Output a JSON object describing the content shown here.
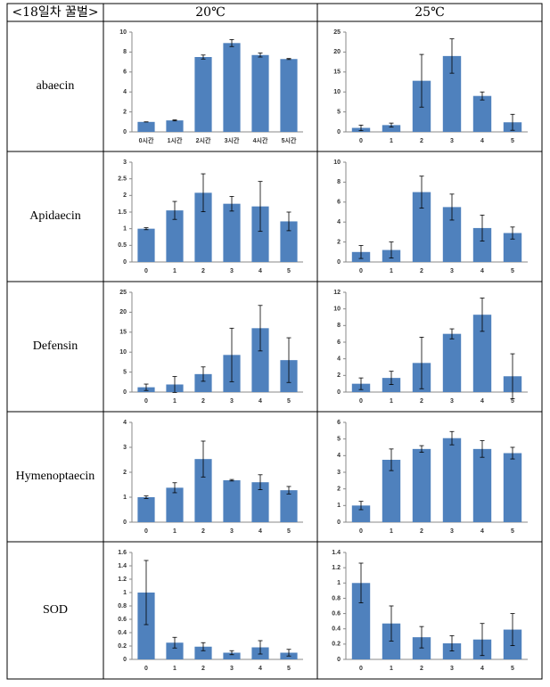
{
  "table": {
    "header": [
      "<18일차 꿀벌>",
      "20℃",
      "25℃"
    ],
    "rows": [
      "abaecin",
      "Apidaecin",
      "Defensin",
      "Hymenoptaecin",
      "SOD"
    ]
  },
  "chart_data": [
    {
      "type": "bar",
      "color": "#4f81bd",
      "categories": [
        "0시간",
        "1시간",
        "2시간",
        "3시간",
        "4시간",
        "5시간"
      ],
      "values": [
        1,
        1.15,
        7.5,
        8.9,
        7.7,
        7.3
      ],
      "errors": [
        0,
        0.05,
        0.2,
        0.35,
        0.2,
        0.05
      ],
      "ylim": [
        0,
        10
      ],
      "yticks": [
        0,
        2,
        4,
        6,
        8,
        10
      ]
    },
    {
      "type": "bar",
      "color": "#4f81bd",
      "categories": [
        "0",
        "1",
        "2",
        "3",
        "4",
        "5"
      ],
      "values": [
        1,
        1.7,
        12.8,
        19,
        9,
        2.4
      ],
      "errors": [
        0.7,
        0.5,
        6.6,
        4.3,
        1,
        2
      ],
      "ylim": [
        0,
        25
      ],
      "yticks": [
        0,
        5,
        10,
        15,
        20,
        25
      ]
    },
    {
      "type": "bar",
      "color": "#4f81bd",
      "categories": [
        "0",
        "1",
        "2",
        "3",
        "4",
        "5"
      ],
      "values": [
        1,
        1.55,
        2.08,
        1.75,
        1.67,
        1.22
      ],
      "errors": [
        0.03,
        0.27,
        0.57,
        0.22,
        0.75,
        0.28
      ],
      "ylim": [
        0,
        3
      ],
      "yticks": [
        0,
        0.5,
        1,
        1.5,
        2,
        2.5,
        3
      ]
    },
    {
      "type": "bar",
      "color": "#4f81bd",
      "categories": [
        "0",
        "1",
        "2",
        "3",
        "4",
        "5"
      ],
      "values": [
        1,
        1.2,
        7,
        5.5,
        3.4,
        2.9
      ],
      "errors": [
        0.65,
        0.8,
        1.6,
        1.3,
        1.3,
        0.6
      ],
      "ylim": [
        0,
        10
      ],
      "yticks": [
        0,
        2,
        4,
        6,
        8,
        10
      ]
    },
    {
      "type": "bar",
      "color": "#4f81bd",
      "categories": [
        "0",
        "1",
        "2",
        "3",
        "4",
        "5"
      ],
      "values": [
        1.2,
        1.9,
        4.5,
        9.3,
        16,
        8
      ],
      "errors": [
        0.8,
        2,
        1.8,
        6.7,
        5.7,
        5.6
      ],
      "ylim": [
        0,
        25
      ],
      "yticks": [
        0,
        5,
        10,
        15,
        20,
        25
      ]
    },
    {
      "type": "bar",
      "color": "#4f81bd",
      "categories": [
        "0",
        "1",
        "2",
        "3",
        "4",
        "5"
      ],
      "values": [
        1,
        1.7,
        3.5,
        7,
        9.3,
        1.9
      ],
      "errors": [
        0.7,
        0.8,
        3.1,
        0.6,
        2,
        2.7
      ],
      "ylim": [
        0,
        12
      ],
      "yticks": [
        0,
        2,
        4,
        6,
        8,
        10,
        12
      ]
    },
    {
      "type": "bar",
      "color": "#4f81bd",
      "categories": [
        "0",
        "1",
        "2",
        "3",
        "4",
        "5"
      ],
      "values": [
        1,
        1.38,
        2.53,
        1.68,
        1.6,
        1.28
      ],
      "errors": [
        0.05,
        0.2,
        0.72,
        0.03,
        0.3,
        0.15
      ],
      "ylim": [
        0,
        4
      ],
      "yticks": [
        0,
        1,
        2,
        3,
        4
      ]
    },
    {
      "type": "bar",
      "color": "#4f81bd",
      "categories": [
        "0",
        "1",
        "2",
        "3",
        "4",
        "5"
      ],
      "values": [
        1,
        3.75,
        4.4,
        5.05,
        4.4,
        4.15
      ],
      "errors": [
        0.25,
        0.65,
        0.2,
        0.4,
        0.5,
        0.35
      ],
      "ylim": [
        0,
        6
      ],
      "yticks": [
        0,
        1,
        2,
        3,
        4,
        5,
        6
      ]
    },
    {
      "type": "bar",
      "color": "#4f81bd",
      "categories": [
        "0",
        "1",
        "2",
        "3",
        "4",
        "5"
      ],
      "values": [
        1,
        0.25,
        0.19,
        0.1,
        0.18,
        0.1
      ],
      "errors": [
        0.48,
        0.08,
        0.06,
        0.03,
        0.1,
        0.05
      ],
      "ylim": [
        0,
        1.6
      ],
      "yticks": [
        0,
        0.2,
        0.4,
        0.6,
        0.8,
        1,
        1.2,
        1.4,
        1.6
      ]
    },
    {
      "type": "bar",
      "color": "#4f81bd",
      "categories": [
        "0",
        "1",
        "2",
        "3",
        "4",
        "5"
      ],
      "values": [
        1,
        0.47,
        0.29,
        0.21,
        0.26,
        0.39
      ],
      "errors": [
        0.26,
        0.23,
        0.14,
        0.1,
        0.21,
        0.21
      ],
      "ylim": [
        0,
        1.4
      ],
      "yticks": [
        0,
        0.2,
        0.4,
        0.6,
        0.8,
        1,
        1.2,
        1.4
      ]
    }
  ]
}
